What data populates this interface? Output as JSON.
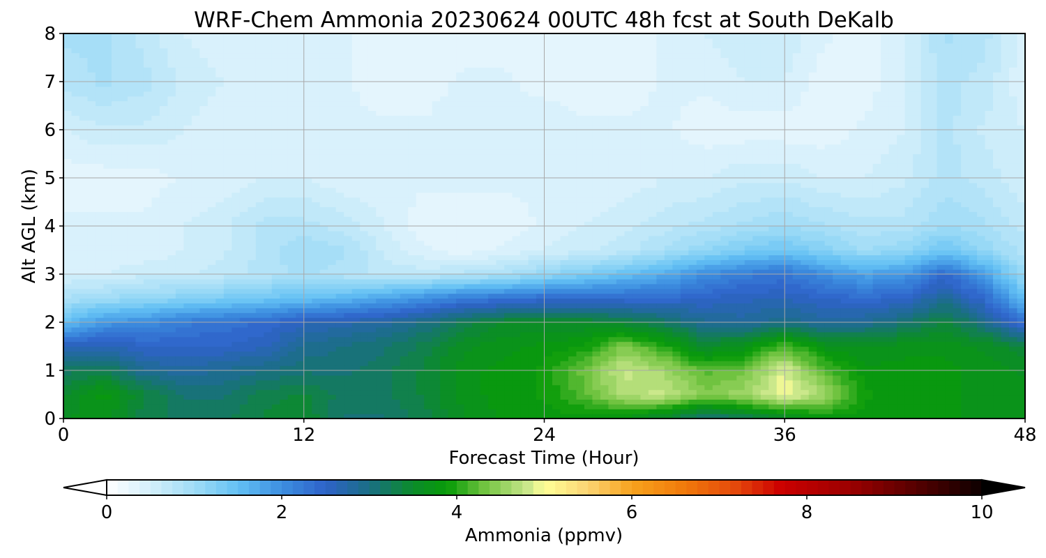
{
  "chart_data": {
    "type": "heatmap",
    "title": "WRF-Chem Ammonia  20230624 00UTC 48h fcst at South DeKalb",
    "xlabel": "Forecast Time (Hour)",
    "ylabel": "Alt AGL (km)",
    "xlim": [
      0,
      48
    ],
    "ylim": [
      0,
      8
    ],
    "x_ticks": [
      0,
      12,
      24,
      36,
      48
    ],
    "y_ticks": [
      0,
      1,
      2,
      3,
      4,
      5,
      6,
      7,
      8
    ],
    "grid": true,
    "x": [
      0,
      2,
      4,
      6,
      8,
      10,
      12,
      14,
      16,
      18,
      20,
      22,
      24,
      26,
      28,
      30,
      32,
      34,
      36,
      38,
      40,
      42,
      44,
      46,
      48
    ],
    "y": [
      0,
      0.5,
      1,
      1.5,
      2,
      2.5,
      3,
      3.5,
      4,
      5,
      6,
      7,
      8
    ],
    "z": [
      [
        3.6,
        3.7,
        3.3,
        3.2,
        3.2,
        3.4,
        3.5,
        3.1,
        3.1,
        3.3,
        3.6,
        3.8,
        3.8,
        3.8,
        3.7,
        3.4,
        3.0,
        3.2,
        3.5,
        3.8,
        3.8,
        3.8,
        3.8,
        3.7,
        3.7
      ],
      [
        3.5,
        3.8,
        3.4,
        3.1,
        3.1,
        3.3,
        3.4,
        3.2,
        3.2,
        3.4,
        3.7,
        3.8,
        3.9,
        4.2,
        4.7,
        4.8,
        4.4,
        4.6,
        5.0,
        4.6,
        3.9,
        3.8,
        3.8,
        3.7,
        3.7
      ],
      [
        3.2,
        3.3,
        2.9,
        2.8,
        2.9,
        3.0,
        3.1,
        3.1,
        3.2,
        3.4,
        3.7,
        3.8,
        3.9,
        4.3,
        4.8,
        4.6,
        4.2,
        4.3,
        4.9,
        4.2,
        3.8,
        3.8,
        3.8,
        3.7,
        3.6
      ],
      [
        2.6,
        2.7,
        2.5,
        2.5,
        2.5,
        2.6,
        2.9,
        3.0,
        3.1,
        3.3,
        3.6,
        3.7,
        3.8,
        3.9,
        4.4,
        4.0,
        3.5,
        3.7,
        4.2,
        3.7,
        3.6,
        3.7,
        3.7,
        3.6,
        3.4
      ],
      [
        1.5,
        1.9,
        2.0,
        2.2,
        2.3,
        2.4,
        2.6,
        2.7,
        2.8,
        3.0,
        3.3,
        3.5,
        3.5,
        3.5,
        3.4,
        3.2,
        2.9,
        2.8,
        3.0,
        2.8,
        2.9,
        3.1,
        3.4,
        3.0,
        2.3
      ],
      [
        0.9,
        1.0,
        1.1,
        1.2,
        1.3,
        1.4,
        1.5,
        1.6,
        1.8,
        2.0,
        2.2,
        2.3,
        2.4,
        2.4,
        2.4,
        2.4,
        2.5,
        2.6,
        2.6,
        2.5,
        2.4,
        2.5,
        2.9,
        2.4,
        1.5
      ],
      [
        0.5,
        0.5,
        0.6,
        0.6,
        0.7,
        0.8,
        0.9,
        0.8,
        0.7,
        0.7,
        0.8,
        0.9,
        1.1,
        1.3,
        1.5,
        1.7,
        2.0,
        2.2,
        2.3,
        2.0,
        1.8,
        1.9,
        2.4,
        1.8,
        1.0
      ],
      [
        0.4,
        0.4,
        0.4,
        0.5,
        0.6,
        0.8,
        1.0,
        0.9,
        0.6,
        0.4,
        0.3,
        0.4,
        0.5,
        0.6,
        0.7,
        0.9,
        1.1,
        1.3,
        1.4,
        1.2,
        1.0,
        1.1,
        1.4,
        1.1,
        0.8
      ],
      [
        0.4,
        0.4,
        0.4,
        0.5,
        0.6,
        0.8,
        0.8,
        0.7,
        0.5,
        0.3,
        0.3,
        0.3,
        0.4,
        0.5,
        0.6,
        0.7,
        0.8,
        0.9,
        1.0,
        0.9,
        0.8,
        0.8,
        1.0,
        0.9,
        0.7
      ],
      [
        0.3,
        0.3,
        0.3,
        0.4,
        0.4,
        0.5,
        0.5,
        0.4,
        0.4,
        0.4,
        0.4,
        0.4,
        0.4,
        0.4,
        0.4,
        0.5,
        0.5,
        0.6,
        0.6,
        0.5,
        0.5,
        0.6,
        0.8,
        0.7,
        0.5
      ],
      [
        0.5,
        0.6,
        0.6,
        0.5,
        0.4,
        0.4,
        0.4,
        0.4,
        0.4,
        0.4,
        0.5,
        0.5,
        0.5,
        0.4,
        0.4,
        0.4,
        0.3,
        0.3,
        0.3,
        0.3,
        0.4,
        0.5,
        0.8,
        0.6,
        0.5
      ],
      [
        0.8,
        0.9,
        0.8,
        0.6,
        0.5,
        0.4,
        0.4,
        0.4,
        0.3,
        0.3,
        0.4,
        0.4,
        0.3,
        0.3,
        0.3,
        0.4,
        0.4,
        0.5,
        0.5,
        0.3,
        0.3,
        0.5,
        0.8,
        0.7,
        0.4
      ],
      [
        0.9,
        0.9,
        0.7,
        0.5,
        0.4,
        0.4,
        0.4,
        0.4,
        0.3,
        0.3,
        0.3,
        0.3,
        0.3,
        0.3,
        0.3,
        0.4,
        0.5,
        0.6,
        0.6,
        0.4,
        0.3,
        0.5,
        0.9,
        0.8,
        0.4
      ]
    ],
    "colorbar": {
      "label": "Ammonia  (ppmv)",
      "min": 0,
      "max": 10,
      "ticks": [
        0,
        2,
        4,
        6,
        8,
        10
      ],
      "extend": "both",
      "colors": [
        [
          0,
          "#ffffff"
        ],
        [
          0.5,
          "#d4effb"
        ],
        [
          1.0,
          "#9fdcf6"
        ],
        [
          1.5,
          "#63c0f4"
        ],
        [
          2.0,
          "#3d8fe0"
        ],
        [
          2.5,
          "#2e62c9"
        ],
        [
          3.0,
          "#1a6e84"
        ],
        [
          3.5,
          "#0b8c2a"
        ],
        [
          3.9,
          "#089b08"
        ],
        [
          4.3,
          "#6ec23e"
        ],
        [
          4.8,
          "#c8e68a"
        ],
        [
          5.0,
          "#ffff98"
        ],
        [
          5.5,
          "#fbd473"
        ],
        [
          6.0,
          "#f7a21d"
        ],
        [
          6.6,
          "#f17a0b"
        ],
        [
          7.2,
          "#e4470b"
        ],
        [
          7.7,
          "#cc0000"
        ],
        [
          8.5,
          "#9b0000"
        ],
        [
          9.2,
          "#5a0000"
        ],
        [
          10,
          "#0d0000"
        ]
      ]
    }
  }
}
